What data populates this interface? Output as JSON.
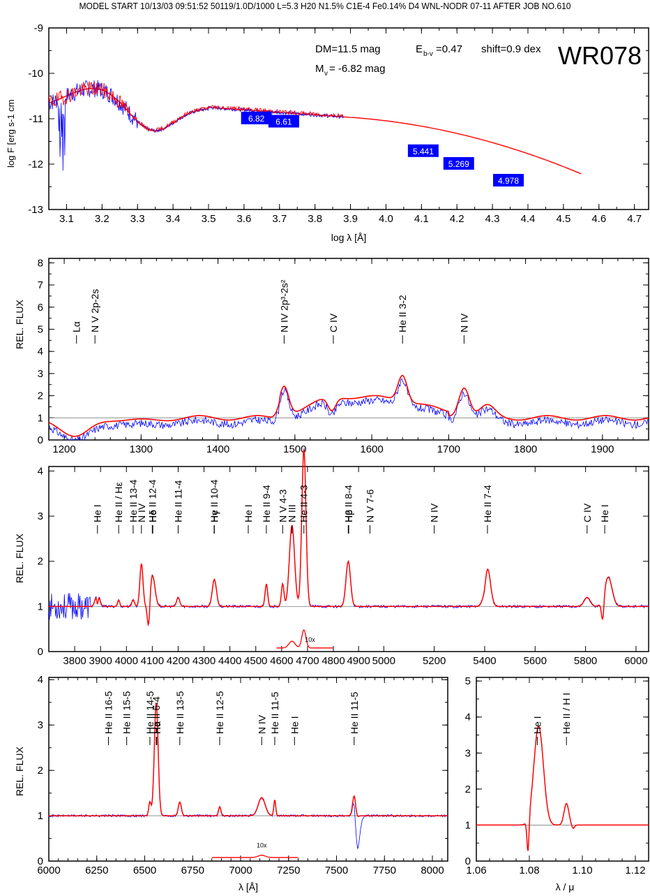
{
  "header": "MODEL START   10/13/03  09:51:52   50119/1.0D/1000 L=5.3 H20 N1.5% C1E-4 Fe0.14% D4 WNL-NODR 07-11    AFTER JOB NO.610",
  "colors": {
    "model": "#ff0000",
    "observed": "#0000ff",
    "frame": "#000000",
    "continuum": "#808080",
    "box": "#0000ff"
  },
  "panels": {
    "sed": {
      "star": "WR078",
      "dm": "DM=11.5 mag",
      "ebv": "E",
      "ebv_sub": "b-v",
      "ebv_val": "=0.47",
      "shift": "shift=0.9 dex",
      "mv": "M",
      "mv_sub": "v",
      "mv_val": " = -6.82 mag",
      "ylabel": "log F",
      "ylabel_rest": " [erg s",
      "ylabel_unit": "-1",
      "ylabel_tail": " cm",
      "xlabel": "log λ [Å]",
      "xticks": [
        "3.1",
        "3.2",
        "3.3",
        "3.4",
        "3.5",
        "3.6",
        "3.7",
        "3.8",
        "3.9",
        "4.0",
        "4.1",
        "4.2",
        "4.3",
        "4.4",
        "4.5",
        "4.6",
        "4.7"
      ],
      "yticks": [
        "-9",
        "-10",
        "-11",
        "-12",
        "-13"
      ],
      "photometry": [
        {
          "x": 3.635,
          "y": -11.0,
          "label": "6.82"
        },
        {
          "x": 3.712,
          "y": -11.07,
          "label": "6.61"
        },
        {
          "x": 4.105,
          "y": -11.72,
          "label": "5.441"
        },
        {
          "x": 4.205,
          "y": -12.0,
          "label": "5.269"
        },
        {
          "x": 4.345,
          "y": -12.37,
          "label": "4.978"
        }
      ]
    },
    "uv": {
      "ylabel": "REL. FLUX",
      "yticks": [
        "0",
        "1",
        "2",
        "3",
        "4",
        "5",
        "6",
        "7",
        "8"
      ],
      "xticks": [
        "1200",
        "1300",
        "1400",
        "1500",
        "1600",
        "1700",
        "1800",
        "1900"
      ],
      "lines": [
        {
          "x": 1216,
          "label": "Lα"
        },
        {
          "x": 1240,
          "label": "N V 2p-2s"
        },
        {
          "x": 1486,
          "label": "N IV 2p³-2s²"
        },
        {
          "x": 1550,
          "label": "C IV"
        },
        {
          "x": 1640,
          "label": "He II 3-2"
        },
        {
          "x": 1720,
          "label": "N IV"
        }
      ]
    },
    "optical": {
      "ylabel": "REL. FLUX",
      "yticks": [
        "0",
        "1",
        "2",
        "3",
        "4"
      ],
      "xticks": [
        "3800",
        "3900",
        "4000",
        "4100",
        "4200",
        "4300",
        "4400",
        "4500",
        "4600",
        "4700",
        "4800",
        "4900",
        "5000",
        "5200",
        "5400",
        "5600",
        "5800",
        "6000"
      ],
      "inset_label": "10x",
      "lines": [
        {
          "x": 3888,
          "label": "He I"
        },
        {
          "x": 3970,
          "label": "He II / Hε"
        },
        {
          "x": 4026,
          "label": "He II 13-4"
        },
        {
          "x": 4058,
          "label": "N IV"
        },
        {
          "x": 4100,
          "label": "He II 12-4"
        },
        {
          "x": 4102,
          "label": "Hδ"
        },
        {
          "x": 4200,
          "label": "He II 11-4"
        },
        {
          "x": 4339,
          "label": "He II 10-4"
        },
        {
          "x": 4340,
          "label": "Hγ"
        },
        {
          "x": 4471,
          "label": "He I"
        },
        {
          "x": 4541,
          "label": "He II 9-4"
        },
        {
          "x": 4604,
          "label": "N V 4-3"
        },
        {
          "x": 4640,
          "label": "N III"
        },
        {
          "x": 4686,
          "label": "He II 4-3"
        },
        {
          "x": 4859,
          "label": "He II 8-4"
        },
        {
          "x": 4861,
          "label": "Hβ"
        },
        {
          "x": 4945,
          "label": "N V 7-6"
        },
        {
          "x": 5200,
          "label": "N IV"
        },
        {
          "x": 5411,
          "label": "He II 7-4"
        },
        {
          "x": 5806,
          "label": "C IV"
        },
        {
          "x": 5876,
          "label": "He I"
        }
      ]
    },
    "red": {
      "ylabel": "REL. FLUX",
      "xlabel": "λ [Å]",
      "yticks": [
        "0",
        "1",
        "2",
        "3",
        "4"
      ],
      "xticks": [
        "6000",
        "6250",
        "6500",
        "6750",
        "7000",
        "7250",
        "7500",
        "7750",
        "8000"
      ],
      "inset_label": "10x",
      "lines": [
        {
          "x": 6311,
          "label": "He II 16-5"
        },
        {
          "x": 6406,
          "label": "He II 15-5"
        },
        {
          "x": 6527,
          "label": "He II 14-5"
        },
        {
          "x": 6560,
          "label": "He II 6-4"
        },
        {
          "x": 6563,
          "label": "Hα"
        },
        {
          "x": 6683,
          "label": "He II 13-5"
        },
        {
          "x": 6891,
          "label": "He II 12-5"
        },
        {
          "x": 7110,
          "label": "N IV"
        },
        {
          "x": 7178,
          "label": "He II 11-5"
        },
        {
          "x": 7281,
          "label": "He I"
        },
        {
          "x": 7592,
          "label": "He II 11-5"
        }
      ]
    },
    "ir": {
      "xlabel": "λ / μ",
      "yticks": [
        "0",
        "1",
        "2",
        "3",
        "4",
        "5"
      ],
      "xticks": [
        "1.06",
        "1.08",
        "1.10",
        "1.12"
      ],
      "lines": [
        {
          "x": 1.083,
          "label": "He I"
        },
        {
          "x": 1.094,
          "label": "He II / H I"
        }
      ]
    }
  }
}
